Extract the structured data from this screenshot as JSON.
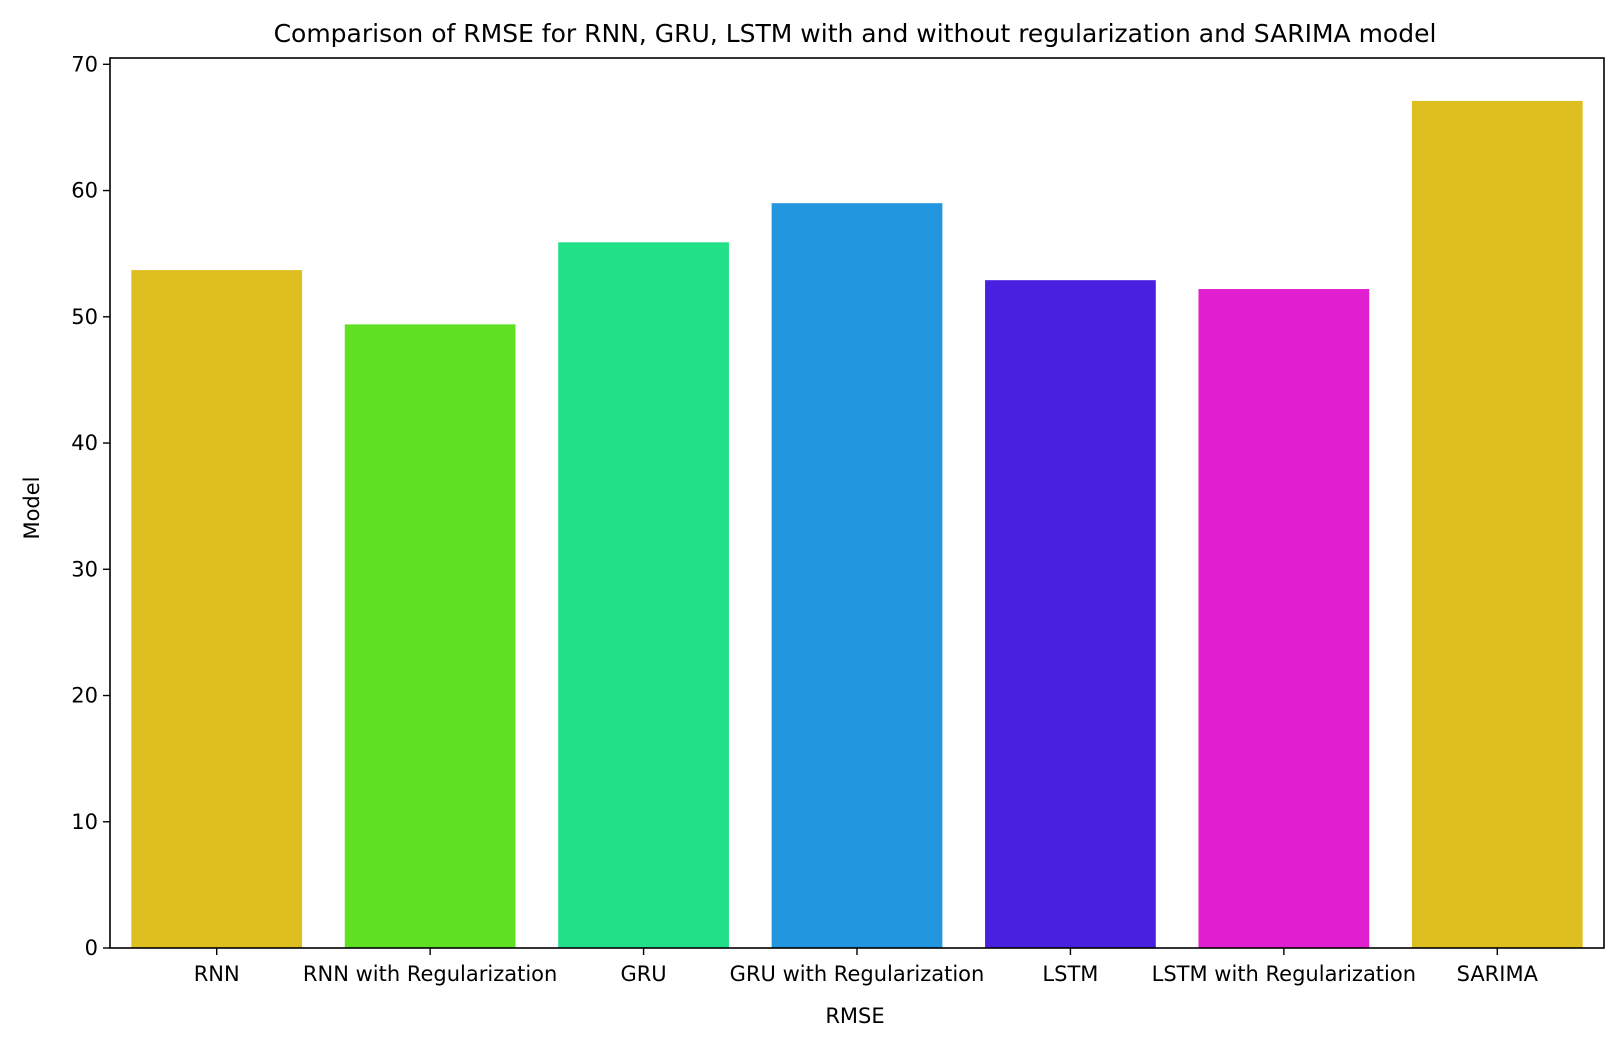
{
  "chart_data": {
    "type": "bar",
    "title": "Comparison of RMSE for RNN, GRU, LSTM with and without regularization and SARIMA model",
    "xlabel": "RMSE",
    "ylabel": "Model",
    "categories": [
      "RNN",
      "RNN with Regularization",
      "GRU",
      "GRU with Regularization",
      "LSTM",
      "LSTM with Regularization",
      "SARIMA"
    ],
    "values": [
      53.7,
      49.4,
      55.9,
      59.0,
      52.9,
      52.2,
      67.1
    ],
    "colors": [
      "#dfbf1f",
      "#5fe022",
      "#22e087",
      "#2296de",
      "#4a20e0",
      "#e020d0",
      "#dfbf1f"
    ],
    "ylim": [
      0,
      70.5
    ],
    "yticks": [
      0,
      10,
      20,
      30,
      40,
      50,
      60,
      70
    ],
    "grid": false,
    "legend": "none"
  }
}
